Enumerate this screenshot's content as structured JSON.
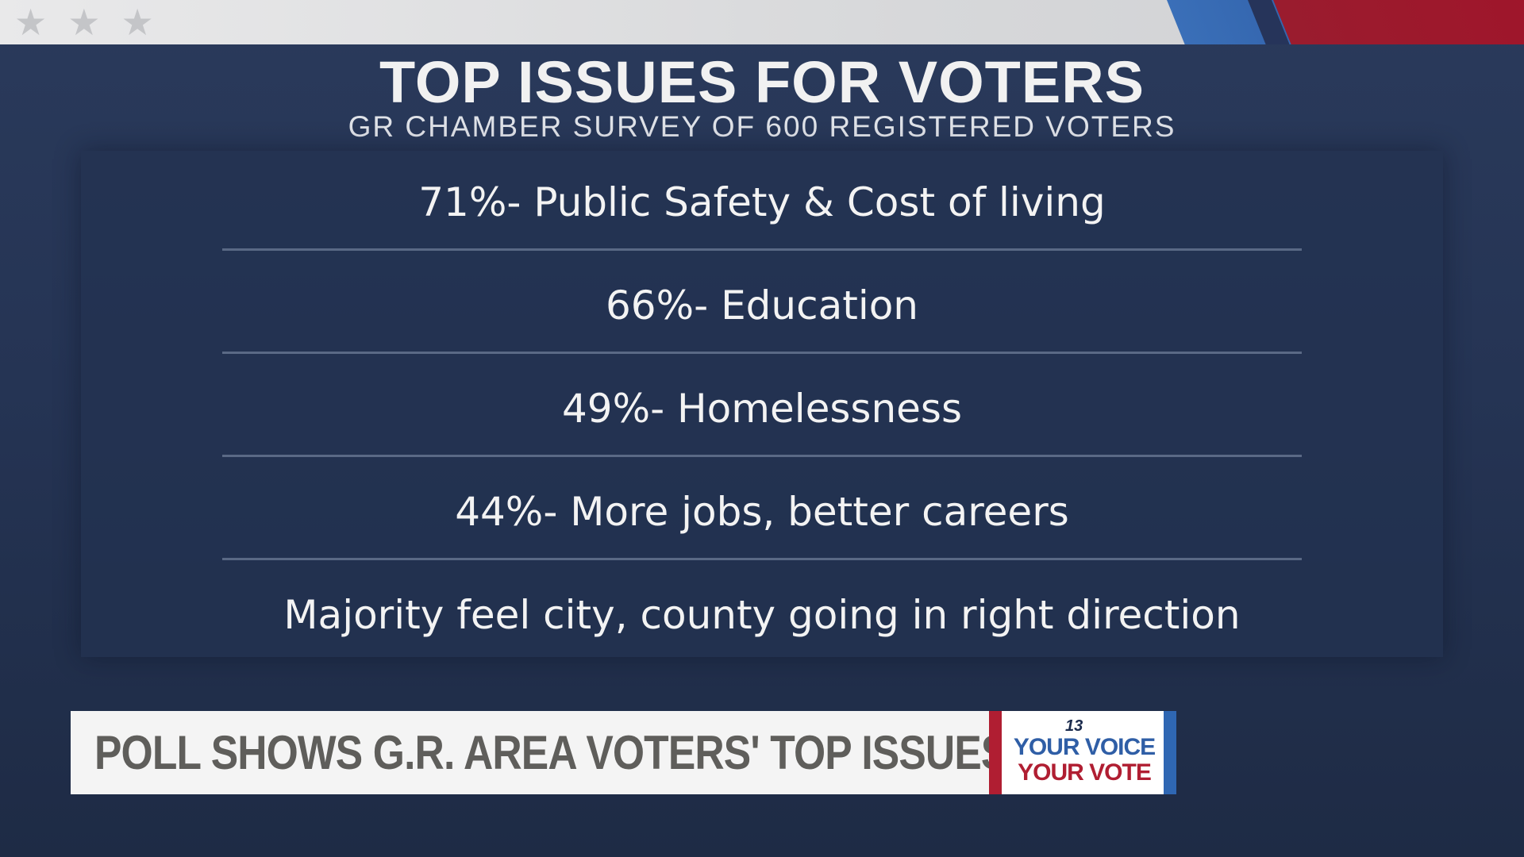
{
  "top_bar": {
    "stars": [
      "★",
      "★",
      "★"
    ],
    "colors": {
      "stripe_gray": "#d7d8da",
      "stripe_blue": "#3a6fb8",
      "stripe_red": "#9a1c2e"
    }
  },
  "heading": {
    "title": "TOP ISSUES FOR VOTERS",
    "subtitle": "GR CHAMBER SURVEY OF 600 REGISTERED VOTERS"
  },
  "issues": [
    "71%- Public Safety & Cost of living",
    "66%- Education",
    "49%- Homelessness",
    "44%- More jobs, better careers",
    "Majority feel city, county going in right direction"
  ],
  "lower_third": {
    "headline": "POLL SHOWS G.R. AREA VOTERS' TOP ISSUES",
    "logo": {
      "channel": "13",
      "line1": "YOUR VOICE",
      "line2": "YOUR VOTE"
    }
  },
  "colors": {
    "background": "#253454",
    "text_primary": "#f1f1f1",
    "headline_text": "#5f5e5b",
    "logo_blue": "#2f5ea6",
    "logo_red": "#b01e32"
  }
}
